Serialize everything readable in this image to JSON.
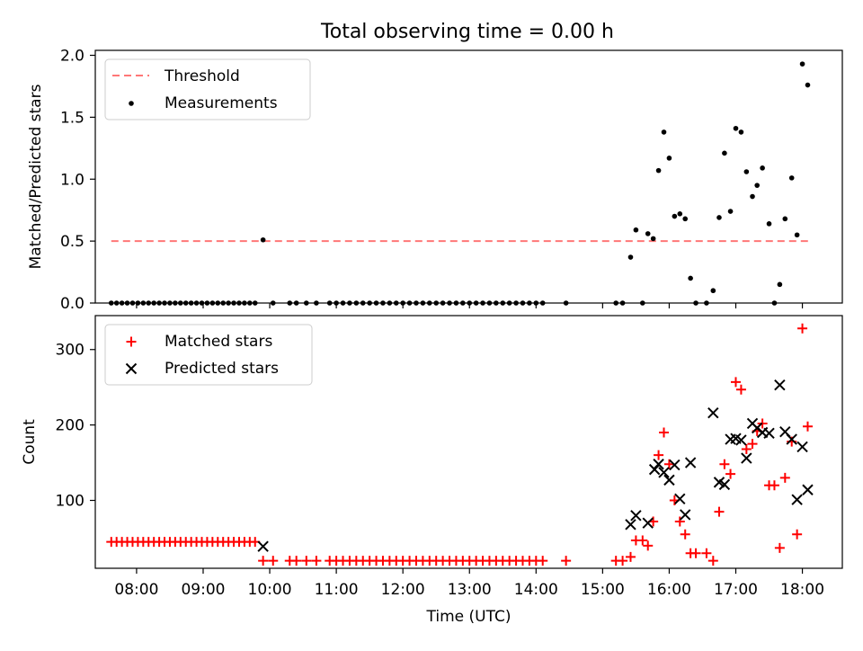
{
  "title": "Total observing time = 0.00 h",
  "colors": {
    "threshold": "#ff7777",
    "measurement": "#000000",
    "matched": "#ff0000",
    "predicted": "#000000"
  },
  "chart_data": [
    {
      "type": "line",
      "panel": "top",
      "title": "Total observing time = 0.00 h",
      "xlabel": "",
      "ylabel": "Matched/Predicted stars",
      "xlim": [
        7.38,
        18.6
      ],
      "ylim": [
        0.0,
        2.04
      ],
      "yticks": [
        "0.0",
        "0.5",
        "1.0",
        "1.5",
        "2.0"
      ],
      "xticks": [
        "08:00",
        "09:00",
        "10:00",
        "11:00",
        "12:00",
        "13:00",
        "14:00",
        "15:00",
        "16:00",
        "17:00",
        "18:00"
      ],
      "xtick_labels_visible": false,
      "legend": "top-left",
      "series": [
        {
          "name": "Threshold",
          "style": "dashed line",
          "x": [
            7.62,
            18.1
          ],
          "y": [
            0.5,
            0.5
          ]
        },
        {
          "name": "Measurements",
          "style": "scatter",
          "x": [
            7.62,
            7.7,
            7.78,
            7.86,
            7.94,
            8.02,
            8.1,
            8.18,
            8.26,
            8.34,
            8.42,
            8.5,
            8.58,
            8.66,
            8.74,
            8.82,
            8.9,
            8.98,
            9.06,
            9.14,
            9.22,
            9.3,
            9.38,
            9.46,
            9.54,
            9.62,
            9.7,
            9.78,
            9.9,
            10.05,
            10.3,
            10.4,
            10.55,
            10.7,
            10.9,
            11.0,
            11.1,
            11.2,
            11.3,
            11.4,
            11.5,
            11.6,
            11.7,
            11.8,
            11.9,
            12.0,
            12.1,
            12.2,
            12.3,
            12.4,
            12.5,
            12.6,
            12.7,
            12.8,
            12.9,
            13.0,
            13.1,
            13.2,
            13.3,
            13.4,
            13.5,
            13.6,
            13.7,
            13.8,
            13.9,
            14.0,
            14.1,
            14.45,
            15.2,
            15.3,
            15.42,
            15.5,
            15.6,
            15.68,
            15.76,
            15.84,
            15.92,
            16.0,
            16.08,
            16.16,
            16.24,
            16.32,
            16.4,
            16.56,
            16.66,
            16.75,
            16.83,
            16.92,
            17.0,
            17.08,
            17.16,
            17.25,
            17.32,
            17.4,
            17.5,
            17.58,
            17.66,
            17.74,
            17.84,
            17.92,
            18.0,
            18.08
          ],
          "y": [
            0,
            0,
            0,
            0,
            0,
            0,
            0,
            0,
            0,
            0,
            0,
            0,
            0,
            0,
            0,
            0,
            0,
            0,
            0,
            0,
            0,
            0,
            0,
            0,
            0,
            0,
            0,
            0,
            0.51,
            0,
            0,
            0,
            0,
            0,
            0,
            0,
            0,
            0,
            0,
            0,
            0,
            0,
            0,
            0,
            0,
            0,
            0,
            0,
            0,
            0,
            0,
            0,
            0,
            0,
            0,
            0,
            0,
            0,
            0,
            0,
            0,
            0,
            0,
            0,
            0,
            0,
            0,
            0,
            0,
            0,
            0.37,
            0.59,
            0,
            0.56,
            0.52,
            1.07,
            1.38,
            1.17,
            0.7,
            0.72,
            0.68,
            0.2,
            0,
            0,
            0.1,
            0.69,
            1.21,
            0.74,
            1.41,
            1.38,
            1.06,
            0.86,
            0.95,
            1.09,
            0.64,
            0,
            0.15,
            0.68,
            1.01,
            0.55,
            1.93,
            1.76
          ]
        }
      ]
    },
    {
      "type": "scatter",
      "panel": "bottom",
      "xlabel": "Time (UTC)",
      "ylabel": "Count",
      "xlim": [
        7.38,
        18.6
      ],
      "ylim": [
        10,
        345
      ],
      "yticks": [
        "100",
        "200",
        "300"
      ],
      "xticks": [
        "08:00",
        "09:00",
        "10:00",
        "11:00",
        "12:00",
        "13:00",
        "14:00",
        "15:00",
        "16:00",
        "17:00",
        "18:00"
      ],
      "legend": "top-left",
      "series": [
        {
          "name": "Matched stars",
          "marker": "+",
          "x": [
            7.62,
            7.7,
            7.78,
            7.86,
            7.94,
            8.02,
            8.1,
            8.18,
            8.26,
            8.34,
            8.42,
            8.5,
            8.58,
            8.66,
            8.74,
            8.82,
            8.9,
            8.98,
            9.06,
            9.14,
            9.22,
            9.3,
            9.38,
            9.46,
            9.54,
            9.62,
            9.7,
            9.78,
            9.9,
            10.05,
            10.3,
            10.4,
            10.55,
            10.7,
            10.9,
            11.0,
            11.1,
            11.2,
            11.3,
            11.4,
            11.5,
            11.6,
            11.7,
            11.8,
            11.9,
            12.0,
            12.1,
            12.2,
            12.3,
            12.4,
            12.5,
            12.6,
            12.7,
            12.8,
            12.9,
            13.0,
            13.1,
            13.2,
            13.3,
            13.4,
            13.5,
            13.6,
            13.7,
            13.8,
            13.9,
            14.0,
            14.1,
            14.45,
            15.2,
            15.3,
            15.42,
            15.5,
            15.6,
            15.68,
            15.76,
            15.84,
            15.92,
            16.0,
            16.08,
            16.16,
            16.24,
            16.32,
            16.4,
            16.56,
            16.66,
            16.75,
            16.83,
            16.92,
            17.0,
            17.08,
            17.16,
            17.25,
            17.32,
            17.4,
            17.5,
            17.58,
            17.66,
            17.74,
            17.84,
            17.92,
            18.0,
            18.08
          ],
          "y": [
            45,
            45,
            45,
            45,
            45,
            45,
            45,
            45,
            45,
            45,
            45,
            45,
            45,
            45,
            45,
            45,
            45,
            45,
            45,
            45,
            45,
            45,
            45,
            45,
            45,
            45,
            45,
            45,
            20,
            20,
            20,
            20,
            20,
            20,
            20,
            20,
            20,
            20,
            20,
            20,
            20,
            20,
            20,
            20,
            20,
            20,
            20,
            20,
            20,
            20,
            20,
            20,
            20,
            20,
            20,
            20,
            20,
            20,
            20,
            20,
            20,
            20,
            20,
            20,
            20,
            20,
            20,
            20,
            20,
            20,
            25,
            47,
            47,
            40,
            72,
            160,
            190,
            148,
            100,
            72,
            55,
            30,
            30,
            30,
            20,
            85,
            148,
            135,
            257,
            247,
            168,
            175,
            192,
            202,
            120,
            120,
            37,
            130,
            178,
            55,
            328,
            198
          ]
        },
        {
          "name": "Predicted stars",
          "marker": "x",
          "x": [
            9.9,
            15.42,
            15.5,
            15.68,
            15.78,
            15.84,
            15.92,
            16.0,
            16.08,
            16.16,
            16.24,
            16.32,
            16.66,
            16.75,
            16.83,
            16.92,
            17.0,
            17.08,
            17.16,
            17.25,
            17.32,
            17.4,
            17.5,
            17.66,
            17.74,
            17.84,
            17.92,
            18.0,
            18.08
          ],
          "y": [
            39,
            68,
            80,
            70,
            141,
            148,
            137,
            127,
            147,
            102,
            81,
            150,
            216,
            124,
            121,
            181,
            182,
            180,
            156,
            202,
            196,
            190,
            189,
            253,
            191,
            181,
            101,
            171,
            114
          ]
        }
      ]
    }
  ]
}
